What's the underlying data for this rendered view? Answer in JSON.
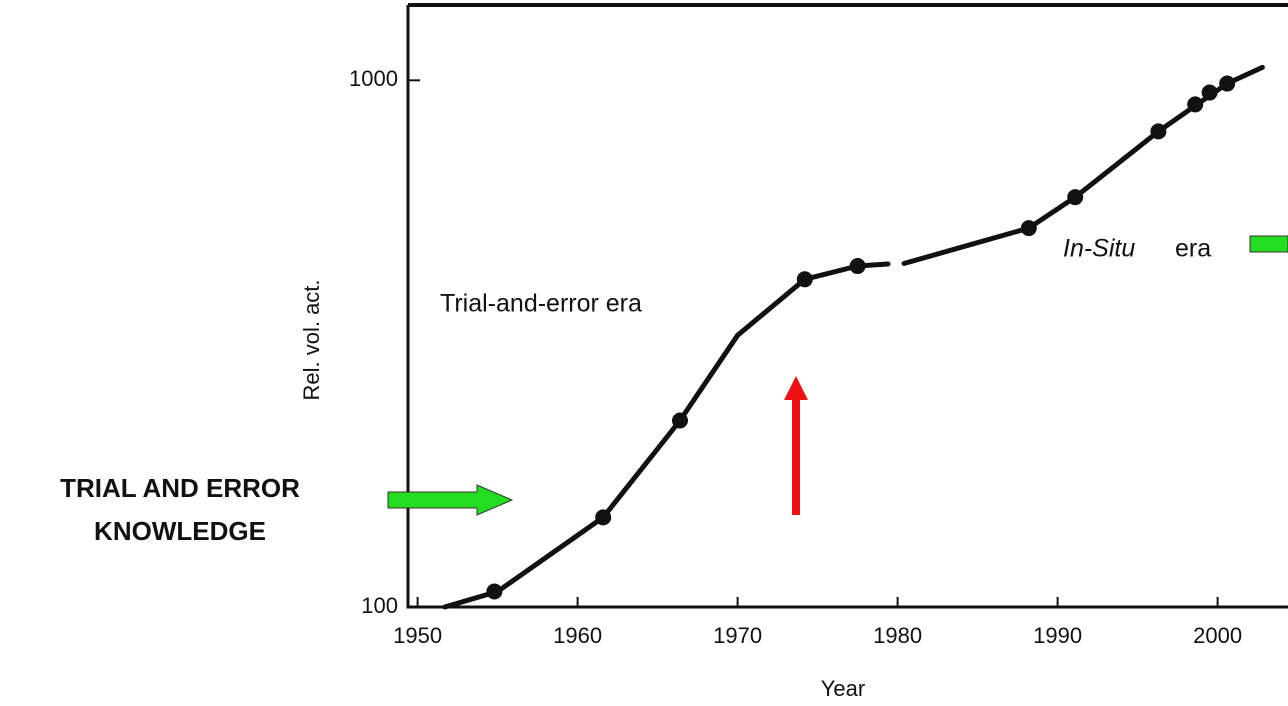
{
  "chart_data": {
    "type": "line",
    "xlabel": "Year",
    "ylabel": "Rel. vol. act.",
    "annotations": [
      "Trial-and-error era",
      "In-Situ",
      "era"
    ],
    "side_label": [
      "TRIAL AND ERROR",
      "KNOWLEDGE"
    ],
    "ylog": true,
    "xlim": [
      1949.4,
      2004.4
    ],
    "ylim": [
      100,
      1390
    ],
    "xticks": [
      1950,
      1960,
      1970,
      1980,
      1990,
      2000
    ],
    "yticks": [
      100,
      1000
    ],
    "series": [
      {
        "style": "line",
        "color": "#111111",
        "x": [
          1951.7,
          1955,
          1961.6,
          1966.4,
          1970,
          1974.2,
          1977.5,
          1979.4,
          null,
          1980.4,
          1988.2,
          1991.1,
          1996.3,
          2000.6,
          2002.8
        ],
        "values": [
          100,
          107,
          148,
          226,
          328,
          419,
          444,
          448,
          null,
          449,
          524,
          600,
          800,
          986,
          1058
        ]
      },
      {
        "style": "points",
        "color": "#111111",
        "x": [
          1954.8,
          1961.6,
          1966.4,
          1974.2,
          1977.5,
          1988.2,
          1991.1,
          1996.3,
          1998.6,
          1999.5,
          2000.6
        ],
        "values": [
          107,
          148,
          226,
          419,
          444,
          524,
          600,
          800,
          900,
          948,
          986
        ]
      }
    ]
  }
}
